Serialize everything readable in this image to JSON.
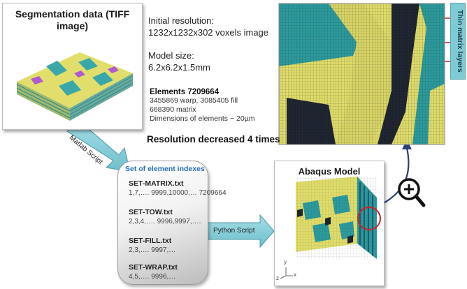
{
  "segmentation": {
    "title_line1": "Segmentation data (TIFF",
    "title_line2": "image)"
  },
  "info": {
    "initial_resolution_label": "Initial resolution:",
    "initial_resolution_value": "1232x1232x302  voxels image",
    "model_size_label": "Model size:",
    "model_size_value": "6.2x6.2x1.5mm",
    "elements_heading": "Elements 7209664",
    "elements_line1": "3455869 warp, 3085405 fill",
    "elements_line2": "668390 matrix",
    "elements_line3": "Dimensions of elements ~ 20µm",
    "resolution_decreased": "Resolution decreased 4 times"
  },
  "arrows": {
    "matlab": "Matlab Script",
    "python": "Python Script"
  },
  "element_sets": {
    "title": "Set of element indexes",
    "items": [
      {
        "name": "SET-MATRIX.txt",
        "values": "1,7,…. 9999,10000,… 7209664"
      },
      {
        "name": "SET-TOW.txt",
        "values": "2,3,4,…. 9996,9997,…."
      },
      {
        "name": "SET-FILL.txt",
        "values": "2,3,…. 9997,…"
      },
      {
        "name": "SET-WRAP.txt",
        "values": "4,5,…. 9996,…"
      }
    ]
  },
  "abaqus": {
    "title": "Abaqus Model",
    "axis_z": "z",
    "axis_y": "y",
    "axis_x": "x"
  },
  "callout": {
    "label": "Thin matrix layers"
  },
  "colors": {
    "yellow": "#e0dc6a",
    "teal": "#2a9a9e",
    "navy": "#1b2e55",
    "arrow_fill": "#7ecbd6",
    "red": "#cc2222"
  }
}
